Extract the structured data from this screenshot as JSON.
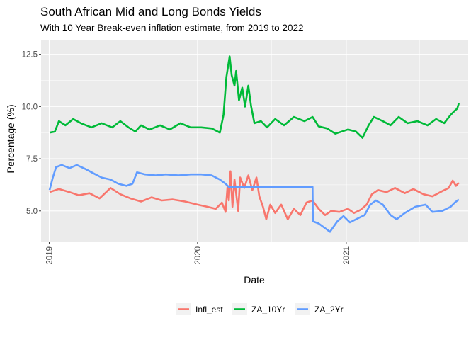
{
  "chart_data": {
    "type": "line",
    "title": "South African Mid and Long Bonds Yields",
    "subtitle": "With 10 Year Break-even inflation estimate, from 2019 to 2022",
    "xlabel": "Date",
    "ylabel": "Percentage (%)",
    "x_tick_labels": [
      "2019",
      "2020",
      "2021"
    ],
    "y_tick_labels": [
      "5.0",
      "7.5",
      "10.0",
      "12.5"
    ],
    "y_ticks": [
      5.0,
      7.5,
      10.0,
      12.5
    ],
    "xlim": [
      "2018-12-12",
      "2021-10-28"
    ],
    "ylim": [
      3.5,
      13.2
    ],
    "grid": true,
    "legend_position": "bottom",
    "series": [
      {
        "name": "Infl_est",
        "color": "#F8766D",
        "points": [
          [
            "2019-01-02",
            5.9
          ],
          [
            "2019-01-25",
            6.05
          ],
          [
            "2019-02-20",
            5.9
          ],
          [
            "2019-03-15",
            5.75
          ],
          [
            "2019-04-10",
            5.85
          ],
          [
            "2019-05-05",
            5.6
          ],
          [
            "2019-06-01",
            6.1
          ],
          [
            "2019-06-25",
            5.8
          ],
          [
            "2019-07-20",
            5.6
          ],
          [
            "2019-08-15",
            5.45
          ],
          [
            "2019-09-10",
            5.65
          ],
          [
            "2019-10-05",
            5.5
          ],
          [
            "2019-11-01",
            5.55
          ],
          [
            "2019-12-01",
            5.45
          ],
          [
            "2020-01-01",
            5.3
          ],
          [
            "2020-01-25",
            5.2
          ],
          [
            "2020-02-15",
            5.1
          ],
          [
            "2020-03-01",
            5.4
          ],
          [
            "2020-03-10",
            4.95
          ],
          [
            "2020-03-15",
            6.2
          ],
          [
            "2020-03-18",
            5.5
          ],
          [
            "2020-03-22",
            6.9
          ],
          [
            "2020-03-27",
            5.2
          ],
          [
            "2020-04-01",
            6.5
          ],
          [
            "2020-04-10",
            5.0
          ],
          [
            "2020-04-15",
            6.6
          ],
          [
            "2020-04-25",
            6.1
          ],
          [
            "2020-05-05",
            6.7
          ],
          [
            "2020-05-15",
            6.0
          ],
          [
            "2020-05-25",
            6.6
          ],
          [
            "2020-06-01",
            5.7
          ],
          [
            "2020-06-10",
            5.2
          ],
          [
            "2020-06-18",
            4.6
          ],
          [
            "2020-06-28",
            5.3
          ],
          [
            "2020-07-10",
            4.9
          ],
          [
            "2020-07-25",
            5.3
          ],
          [
            "2020-08-10",
            4.6
          ],
          [
            "2020-08-25",
            5.1
          ],
          [
            "2020-09-10",
            4.8
          ],
          [
            "2020-09-25",
            5.4
          ],
          [
            "2020-10-10",
            5.5
          ],
          [
            "2020-10-25",
            5.1
          ],
          [
            "2020-11-10",
            4.8
          ],
          [
            "2020-11-25",
            5.0
          ],
          [
            "2020-12-15",
            4.95
          ],
          [
            "2021-01-05",
            5.1
          ],
          [
            "2021-01-20",
            4.9
          ],
          [
            "2021-02-05",
            5.05
          ],
          [
            "2021-02-20",
            5.3
          ],
          [
            "2021-03-05",
            5.8
          ],
          [
            "2021-03-20",
            6.0
          ],
          [
            "2021-04-10",
            5.9
          ],
          [
            "2021-05-01",
            6.1
          ],
          [
            "2021-05-25",
            5.85
          ],
          [
            "2021-06-15",
            6.05
          ],
          [
            "2021-07-10",
            5.8
          ],
          [
            "2021-08-01",
            5.7
          ],
          [
            "2021-08-25",
            5.95
          ],
          [
            "2021-09-10",
            6.1
          ],
          [
            "2021-09-20",
            6.45
          ],
          [
            "2021-09-28",
            6.2
          ],
          [
            "2021-10-05",
            6.35
          ]
        ]
      },
      {
        "name": "ZA_10Yr",
        "color": "#00BA38",
        "points": [
          [
            "2019-01-02",
            8.75
          ],
          [
            "2019-01-15",
            8.8
          ],
          [
            "2019-01-25",
            9.3
          ],
          [
            "2019-02-10",
            9.1
          ],
          [
            "2019-03-01",
            9.4
          ],
          [
            "2019-03-20",
            9.2
          ],
          [
            "2019-04-15",
            9.0
          ],
          [
            "2019-05-10",
            9.2
          ],
          [
            "2019-06-05",
            9.0
          ],
          [
            "2019-06-25",
            9.3
          ],
          [
            "2019-07-15",
            9.0
          ],
          [
            "2019-08-01",
            8.8
          ],
          [
            "2019-08-15",
            9.1
          ],
          [
            "2019-09-05",
            8.9
          ],
          [
            "2019-10-01",
            9.1
          ],
          [
            "2019-10-25",
            8.9
          ],
          [
            "2019-11-20",
            9.2
          ],
          [
            "2019-12-15",
            9.0
          ],
          [
            "2020-01-10",
            9.0
          ],
          [
            "2020-02-05",
            8.95
          ],
          [
            "2020-02-25",
            8.75
          ],
          [
            "2020-03-05",
            9.6
          ],
          [
            "2020-03-12",
            11.4
          ],
          [
            "2020-03-20",
            12.4
          ],
          [
            "2020-03-25",
            11.5
          ],
          [
            "2020-04-01",
            11.0
          ],
          [
            "2020-04-05",
            11.7
          ],
          [
            "2020-04-12",
            10.3
          ],
          [
            "2020-04-20",
            10.9
          ],
          [
            "2020-04-27",
            10.0
          ],
          [
            "2020-05-05",
            11.0
          ],
          [
            "2020-05-12",
            10.0
          ],
          [
            "2020-05-20",
            9.2
          ],
          [
            "2020-06-05",
            9.3
          ],
          [
            "2020-06-20",
            9.0
          ],
          [
            "2020-07-10",
            9.4
          ],
          [
            "2020-08-01",
            9.1
          ],
          [
            "2020-08-25",
            9.5
          ],
          [
            "2020-09-20",
            9.3
          ],
          [
            "2020-10-10",
            9.5
          ],
          [
            "2020-10-25",
            9.05
          ],
          [
            "2020-11-15",
            8.95
          ],
          [
            "2020-12-05",
            8.7
          ],
          [
            "2021-01-05",
            8.9
          ],
          [
            "2021-01-25",
            8.8
          ],
          [
            "2021-02-10",
            8.5
          ],
          [
            "2021-02-25",
            9.1
          ],
          [
            "2021-03-10",
            9.5
          ],
          [
            "2021-04-01",
            9.3
          ],
          [
            "2021-04-20",
            9.1
          ],
          [
            "2021-05-10",
            9.5
          ],
          [
            "2021-06-01",
            9.2
          ],
          [
            "2021-06-25",
            9.3
          ],
          [
            "2021-07-20",
            9.1
          ],
          [
            "2021-08-10",
            9.4
          ],
          [
            "2021-08-30",
            9.2
          ],
          [
            "2021-09-15",
            9.6
          ],
          [
            "2021-09-25",
            9.8
          ],
          [
            "2021-10-01",
            9.9
          ],
          [
            "2021-10-05",
            10.15
          ]
        ]
      },
      {
        "name": "ZA_2Yr",
        "color": "#619CFF",
        "points": [
          [
            "2019-01-02",
            6.0
          ],
          [
            "2019-01-10",
            6.6
          ],
          [
            "2019-01-18",
            7.1
          ],
          [
            "2019-02-01",
            7.2
          ],
          [
            "2019-02-20",
            7.05
          ],
          [
            "2019-03-10",
            7.2
          ],
          [
            "2019-04-01",
            7.0
          ],
          [
            "2019-04-20",
            6.8
          ],
          [
            "2019-05-10",
            6.6
          ],
          [
            "2019-06-01",
            6.5
          ],
          [
            "2019-06-20",
            6.3
          ],
          [
            "2019-07-10",
            6.2
          ],
          [
            "2019-07-25",
            6.3
          ],
          [
            "2019-08-05",
            6.85
          ],
          [
            "2019-08-25",
            6.75
          ],
          [
            "2019-09-20",
            6.7
          ],
          [
            "2019-10-15",
            6.75
          ],
          [
            "2019-11-15",
            6.7
          ],
          [
            "2019-12-15",
            6.75
          ],
          [
            "2020-01-10",
            6.75
          ],
          [
            "2020-02-05",
            6.7
          ],
          [
            "2020-02-25",
            6.5
          ],
          [
            "2020-03-10",
            6.3
          ],
          [
            "2020-03-18",
            6.15
          ],
          [
            "2020-03-25",
            6.15
          ],
          [
            "2020-10-10",
            6.15
          ],
          [
            "2020-10-11",
            4.5
          ],
          [
            "2020-10-25",
            4.4
          ],
          [
            "2020-11-15",
            4.1
          ],
          [
            "2020-11-22",
            4.0
          ],
          [
            "2020-12-10",
            4.5
          ],
          [
            "2020-12-25",
            4.75
          ],
          [
            "2021-01-10",
            4.45
          ],
          [
            "2021-01-25",
            4.6
          ],
          [
            "2021-02-15",
            4.8
          ],
          [
            "2021-03-01",
            5.3
          ],
          [
            "2021-03-15",
            5.5
          ],
          [
            "2021-04-01",
            5.3
          ],
          [
            "2021-04-20",
            4.8
          ],
          [
            "2021-05-05",
            4.6
          ],
          [
            "2021-05-25",
            4.9
          ],
          [
            "2021-06-20",
            5.2
          ],
          [
            "2021-07-15",
            5.3
          ],
          [
            "2021-08-01",
            4.95
          ],
          [
            "2021-08-25",
            5.0
          ],
          [
            "2021-09-15",
            5.2
          ],
          [
            "2021-09-25",
            5.4
          ],
          [
            "2021-10-05",
            5.55
          ]
        ]
      }
    ]
  }
}
